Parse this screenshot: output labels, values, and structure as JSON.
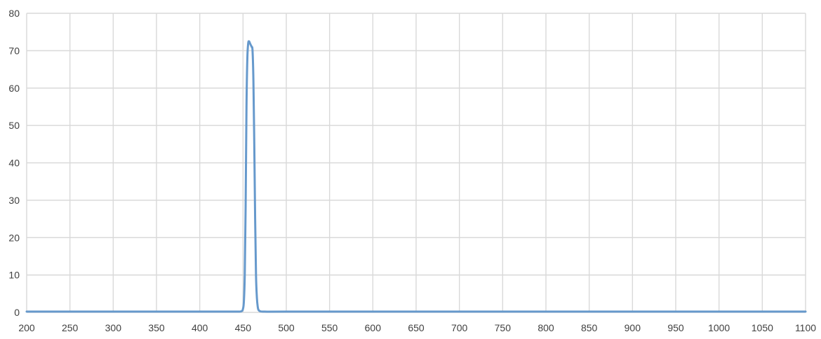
{
  "chart_data": {
    "type": "line",
    "title": "",
    "xlabel": "",
    "ylabel": "",
    "xlim": [
      200,
      1100
    ],
    "ylim": [
      0,
      80
    ],
    "x_ticks": [
      200,
      250,
      300,
      350,
      400,
      450,
      500,
      550,
      600,
      650,
      700,
      750,
      800,
      850,
      900,
      950,
      1000,
      1050,
      1100
    ],
    "y_ticks": [
      0,
      10,
      20,
      30,
      40,
      50,
      60,
      70,
      80
    ],
    "grid": true,
    "legend": "none",
    "colors": {
      "series": "#6699cc",
      "grid": "#d9d9d9",
      "tick_text": "#404040"
    },
    "series": [
      {
        "x": [
          200,
          300,
          400,
          440,
          448,
          450,
          451,
          452,
          453,
          454,
          455,
          456,
          457,
          458,
          459,
          460,
          461,
          462,
          463,
          464,
          465,
          466,
          467,
          468,
          470,
          475,
          500,
          600,
          700,
          800,
          900,
          1000,
          1100
        ],
        "y": [
          0.2,
          0.2,
          0.2,
          0.2,
          0.3,
          1,
          3,
          10,
          28,
          55,
          68,
          72,
          72.5,
          72,
          71.5,
          71,
          70,
          62,
          45,
          25,
          10,
          4,
          1.5,
          0.6,
          0.3,
          0.2,
          0.2,
          0.2,
          0.2,
          0.2,
          0.2,
          0.2,
          0.2
        ]
      }
    ]
  }
}
